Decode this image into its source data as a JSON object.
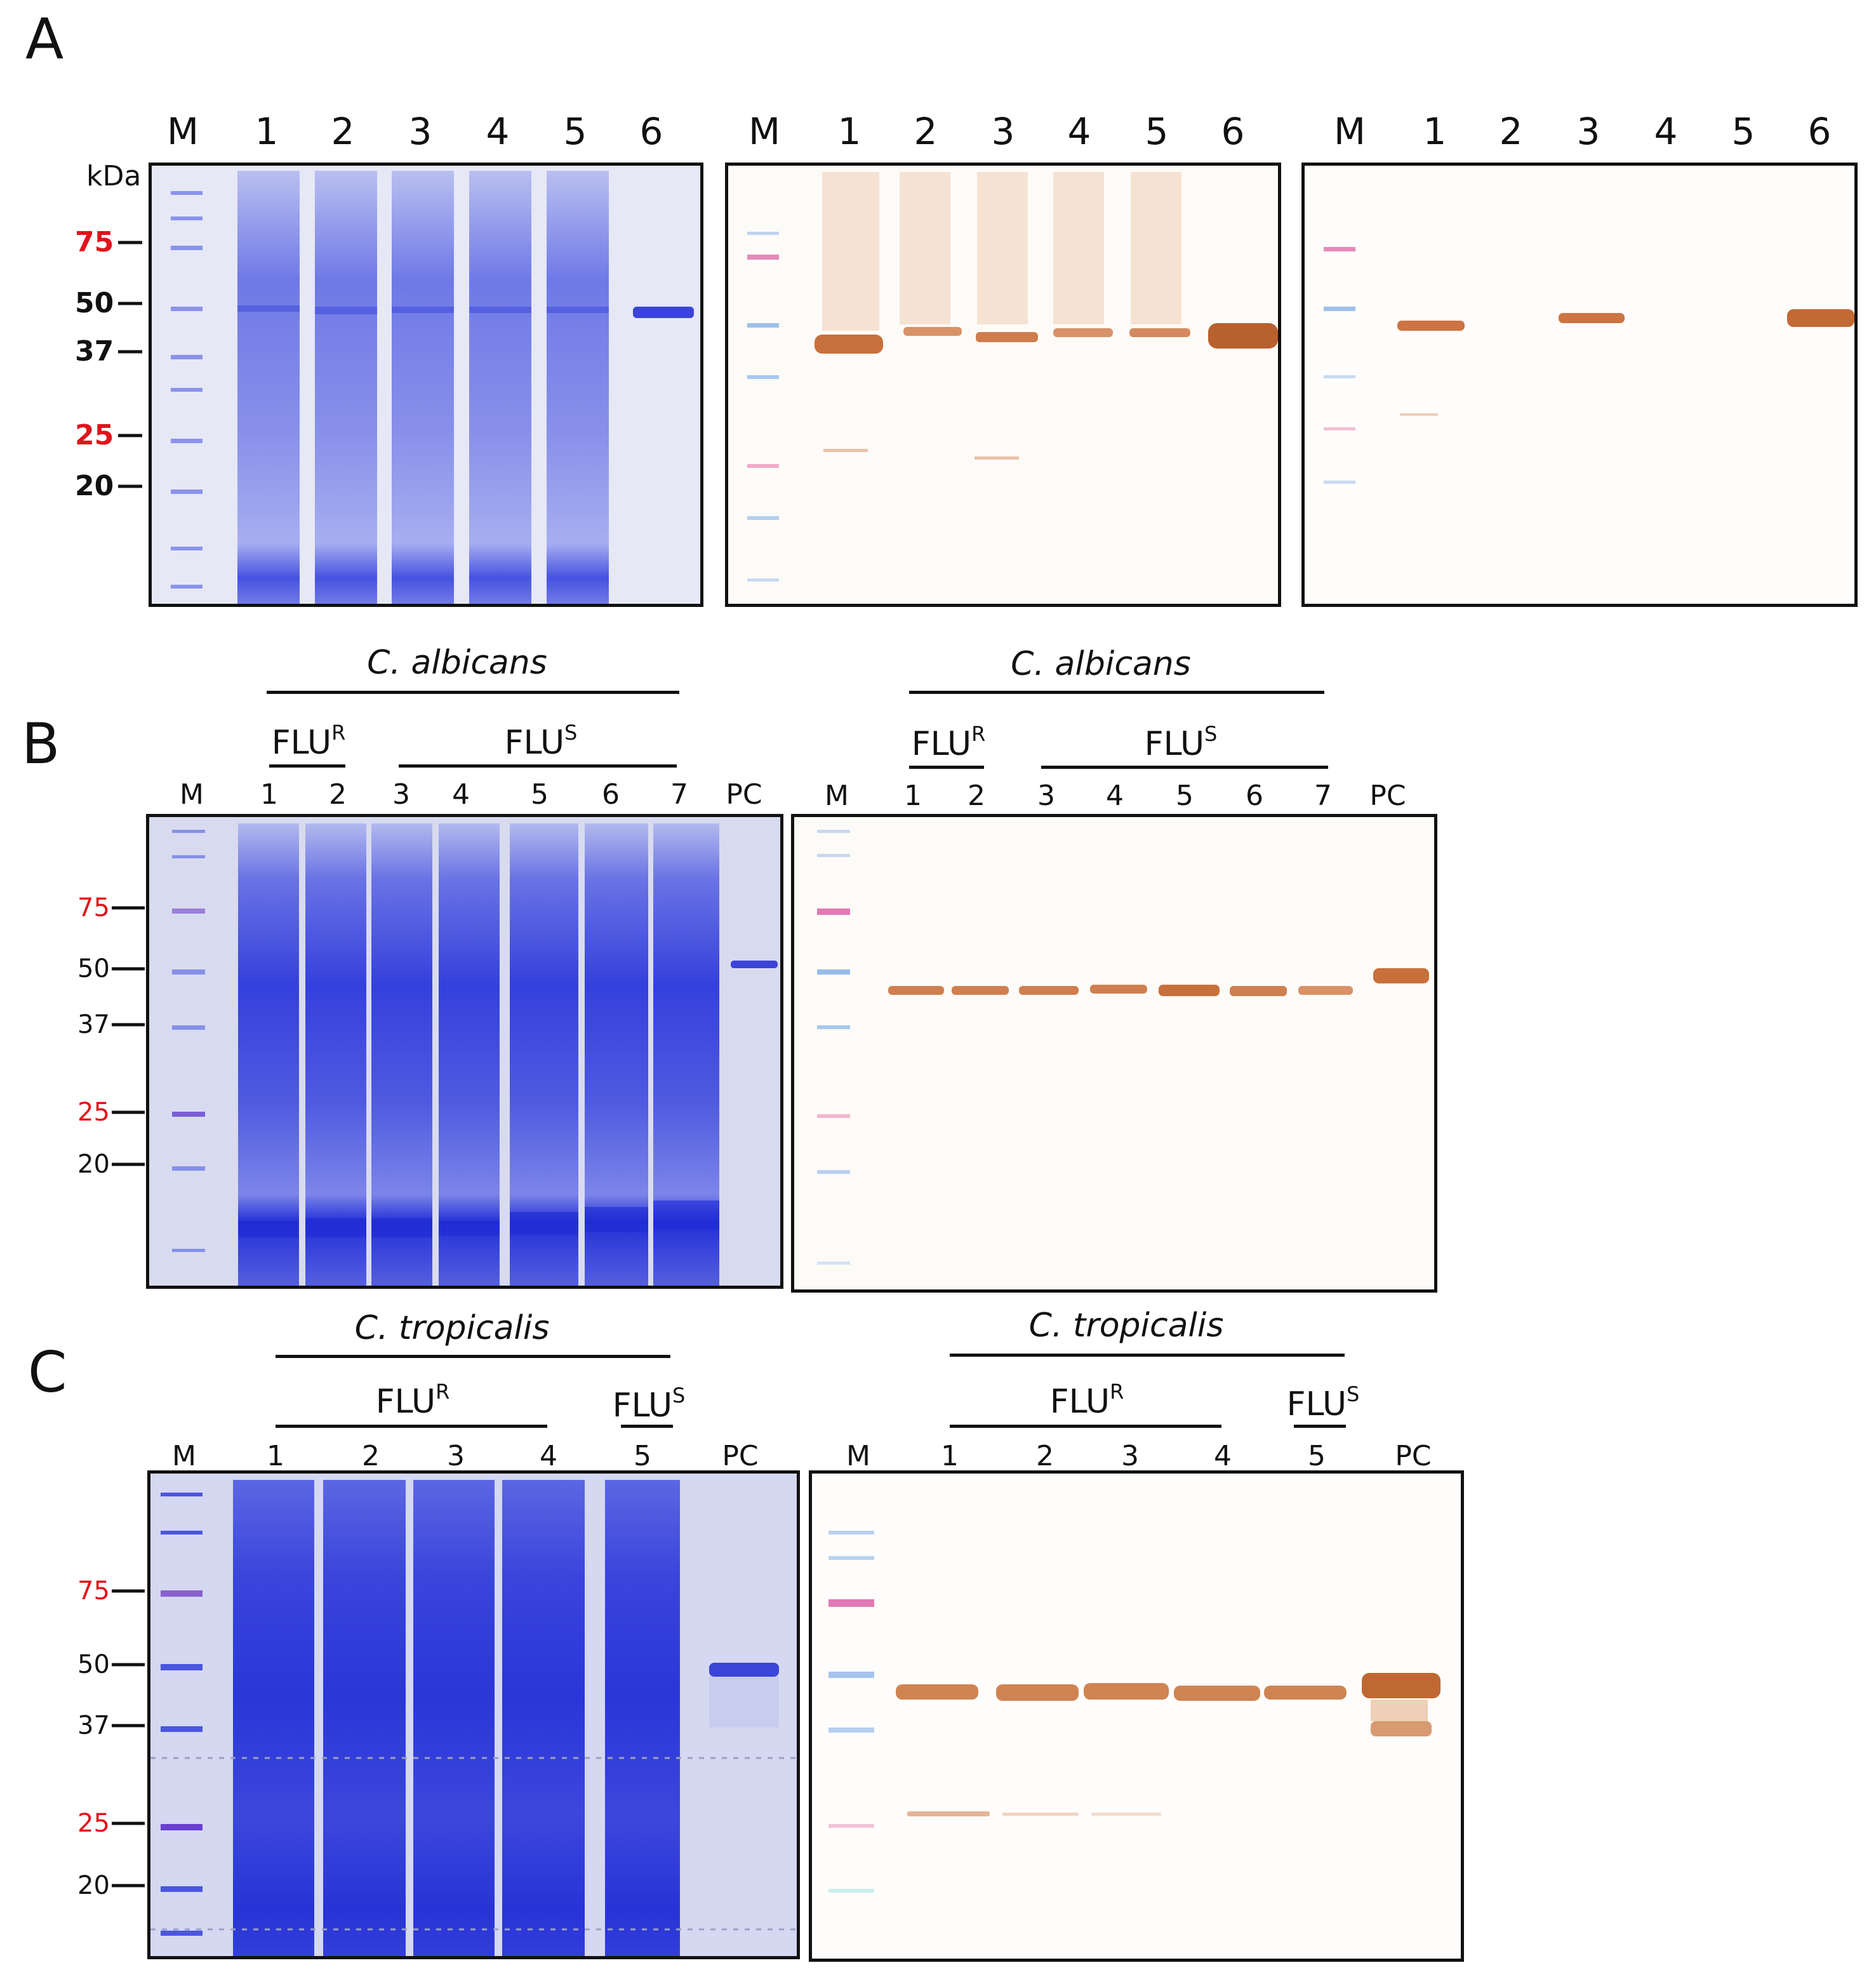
{
  "panels": {
    "A": {
      "letter": "A",
      "kda_label": "kDa",
      "lane_labels": [
        "M",
        "1",
        "2",
        "3",
        "4",
        "5",
        "6"
      ],
      "markers": [
        {
          "label": "75",
          "color": "#e0141b"
        },
        {
          "label": "50",
          "color": "#111111"
        },
        {
          "label": "37",
          "color": "#111111"
        },
        {
          "label": "25",
          "color": "#e0141b"
        },
        {
          "label": "20",
          "color": "#111111"
        }
      ]
    },
    "B": {
      "letter": "B",
      "species": "C. albicans",
      "group_resistant": "FLU",
      "group_resistant_sup": "R",
      "group_susceptible": "FLU",
      "group_susceptible_sup": "S",
      "lane_labels": [
        "M",
        "1",
        "2",
        "3",
        "4",
        "5",
        "6",
        "7",
        "PC"
      ],
      "markers": [
        {
          "label": "75",
          "color": "#e0141b"
        },
        {
          "label": "50",
          "color": "#111111"
        },
        {
          "label": "37",
          "color": "#111111"
        },
        {
          "label": "25",
          "color": "#e0141b"
        },
        {
          "label": "20",
          "color": "#111111"
        }
      ]
    },
    "C": {
      "letter": "C",
      "species": "C. tropicalis",
      "group_resistant": "FLU",
      "group_resistant_sup": "R",
      "group_susceptible": "FLU",
      "group_susceptible_sup": "S",
      "lane_labels": [
        "M",
        "1",
        "2",
        "3",
        "4",
        "5",
        "PC"
      ],
      "markers": [
        {
          "label": "75",
          "color": "#e0141b"
        },
        {
          "label": "50",
          "color": "#111111"
        },
        {
          "label": "37",
          "color": "#111111"
        },
        {
          "label": "25",
          "color": "#e0141b"
        },
        {
          "label": "20",
          "color": "#111111"
        }
      ]
    }
  },
  "colors": {
    "coomassie": "#4a57e0",
    "coomassie_dark": "#2a30d8",
    "gel_bg": "#d9dcf2",
    "western_band": "#c8703c",
    "western_bg": "#fdfbf7"
  }
}
